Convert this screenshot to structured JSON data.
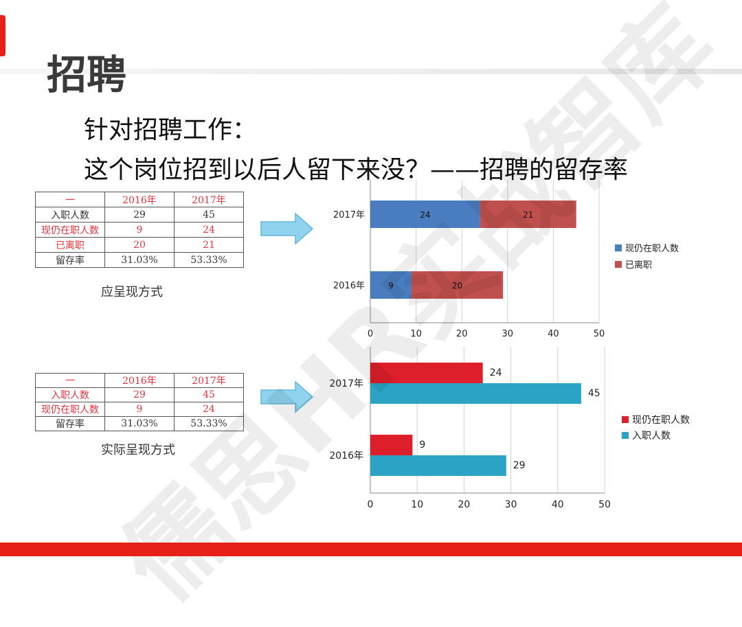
{
  "title": "招聘",
  "subtitle_line1": "针对招聘工作：",
  "subtitle_line2": "这个岗位招到以后人留下来没？——招聘的留存率",
  "watermark": "儒思HR实战智库",
  "table1": {
    "caption": "应呈现方式",
    "header": [
      "一",
      "2016年",
      "2017年"
    ],
    "rows": [
      {
        "cells": [
          "入职人数",
          "29",
          "45"
        ],
        "red": false
      },
      {
        "cells": [
          "现仍在职人数",
          "9",
          "24"
        ],
        "red": true
      },
      {
        "cells": [
          "已离职",
          "20",
          "21"
        ],
        "red": true
      },
      {
        "cells": [
          "留存率",
          "31.03%",
          "53.33%"
        ],
        "red": false
      }
    ]
  },
  "table2": {
    "caption": "实际呈现方式",
    "header": [
      "一",
      "2016年",
      "2017年"
    ],
    "rows": [
      {
        "cells": [
          "入职人数",
          "29",
          "45"
        ],
        "red": true
      },
      {
        "cells": [
          "现仍在职人数",
          "9",
          "24"
        ],
        "red": true
      },
      {
        "cells": [
          "留存率",
          "31.03%",
          "53.33%"
        ],
        "red": false
      }
    ]
  },
  "arrow_color": "#8fd3ee",
  "chart_data": [
    {
      "type": "bar",
      "orientation": "horizontal",
      "stacked": true,
      "categories": [
        "2017年",
        "2016年"
      ],
      "series": [
        {
          "name": "现仍在职人数",
          "values": [
            24,
            9
          ],
          "color": "#4a7dbf"
        },
        {
          "name": "已离职",
          "values": [
            21,
            20
          ],
          "color": "#c0504d"
        }
      ],
      "xlim": [
        0,
        50
      ],
      "xticks": [
        "0",
        "10",
        "20",
        "30",
        "40",
        "50"
      ],
      "grid": true,
      "legend": "right",
      "data_labels": true
    },
    {
      "type": "bar",
      "orientation": "horizontal",
      "stacked": false,
      "categories": [
        "2017年",
        "2016年"
      ],
      "series": [
        {
          "name": "现仍在职人数",
          "values": [
            24,
            9
          ],
          "color": "#dc1f2a"
        },
        {
          "name": "入职人数",
          "values": [
            45,
            29
          ],
          "color": "#2aa3c4"
        }
      ],
      "xlim": [
        0,
        50
      ],
      "xticks": [
        "0",
        "10",
        "20",
        "30",
        "40",
        "50"
      ],
      "grid": true,
      "legend": "right",
      "data_labels": true
    }
  ]
}
